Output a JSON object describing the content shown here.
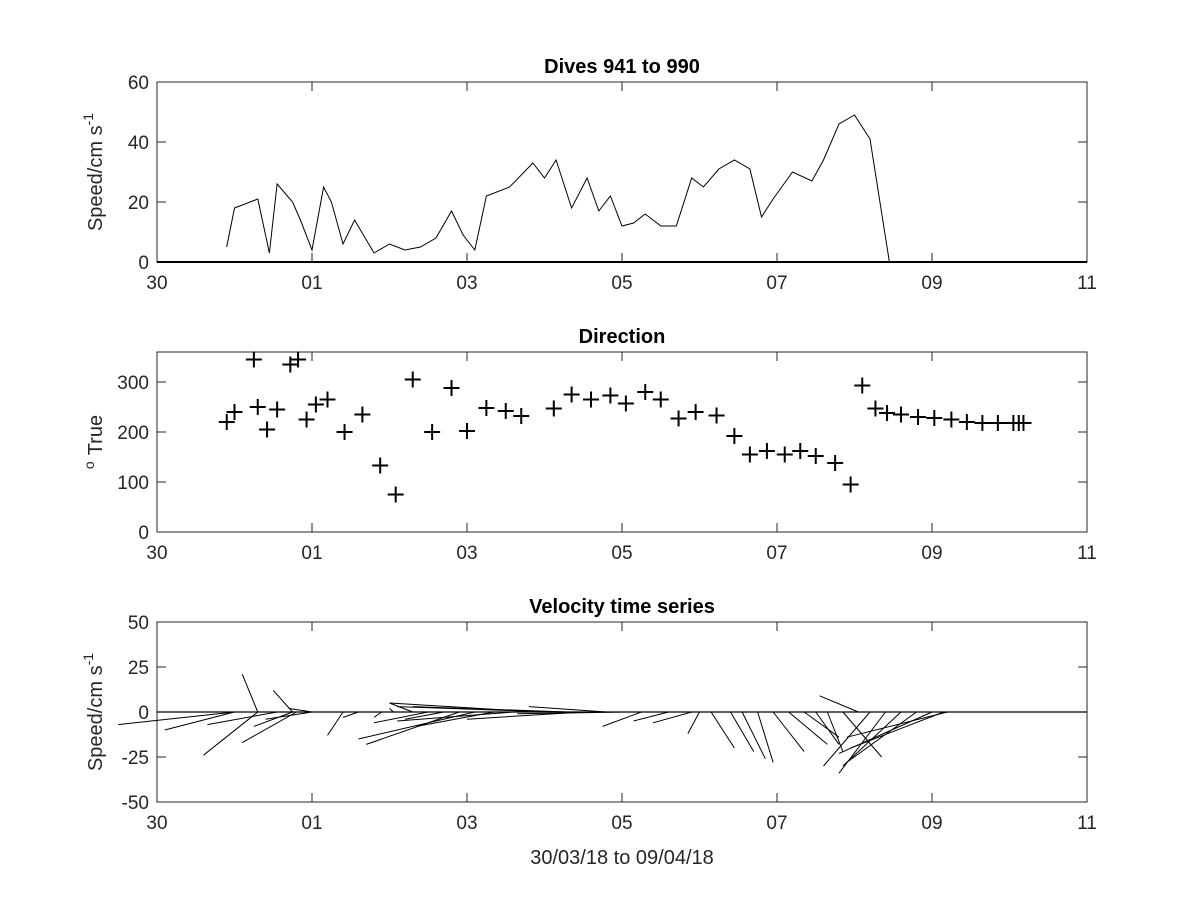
{
  "chart_data": [
    {
      "type": "line",
      "title": "Dives 941 to 990",
      "ylabel": "Speed/cm s",
      "ylabel_superscript": "-1",
      "xlabel": "",
      "xlim": [
        30,
        42
      ],
      "ylim": [
        0,
        60
      ],
      "xticks": [
        30,
        32,
        34,
        36,
        38,
        40,
        42
      ],
      "xtick_labels": [
        "30",
        "01",
        "03",
        "05",
        "07",
        "09",
        "11"
      ],
      "yticks": [
        0,
        20,
        40,
        60
      ],
      "ytick_labels": [
        "0",
        "20",
        "40",
        "60"
      ],
      "grid": false,
      "series": [
        {
          "x": [
            30.9,
            31.0,
            31.3,
            31.45,
            31.55,
            31.75,
            31.85,
            32.0,
            32.15,
            32.25,
            32.4,
            32.55,
            32.8,
            33.0,
            33.2,
            33.4,
            33.6,
            33.8,
            33.95,
            34.1,
            34.25,
            34.55,
            34.85,
            35.0,
            35.15,
            35.35,
            35.55,
            35.7,
            35.85,
            36.0,
            36.15,
            36.3,
            36.5,
            36.7,
            36.9,
            37.05,
            37.25,
            37.45,
            37.65,
            37.8,
            37.95,
            38.2,
            38.45,
            38.6,
            38.8,
            39.0,
            39.2,
            39.45,
            39.65,
            39.85,
            40.05,
            40.15,
            40.2
          ],
          "y": [
            5,
            18,
            21,
            3,
            26,
            20,
            14,
            4,
            25,
            20,
            6,
            14,
            3,
            6,
            4,
            5,
            8,
            17,
            9,
            4,
            22,
            25,
            33,
            28,
            34,
            18,
            28,
            17,
            22,
            12,
            13,
            16,
            12,
            12,
            28,
            25,
            31,
            34,
            31,
            15,
            21,
            30,
            27,
            34,
            46,
            49,
            41,
            0,
            0,
            0,
            0,
            0,
            0
          ],
          "color": "#000000"
        }
      ]
    },
    {
      "type": "scatter",
      "title": "Direction",
      "ylabel": "True",
      "ylabel_superscript": "o",
      "xlabel": "",
      "xlim": [
        30,
        42
      ],
      "ylim": [
        0,
        360
      ],
      "xticks": [
        30,
        32,
        34,
        36,
        38,
        40,
        42
      ],
      "xtick_labels": [
        "30",
        "01",
        "03",
        "05",
        "07",
        "09",
        "11"
      ],
      "yticks": [
        0,
        100,
        200,
        300
      ],
      "ytick_labels": [
        "0",
        "100",
        "200",
        "300"
      ],
      "grid": false,
      "marker": "+",
      "series": [
        {
          "x": [
            30.9,
            31.0,
            31.25,
            31.3,
            31.42,
            31.55,
            31.72,
            31.82,
            31.93,
            32.05,
            32.2,
            32.42,
            32.65,
            32.88,
            33.08,
            33.3,
            33.55,
            33.8,
            34.0,
            34.25,
            34.5,
            34.7,
            35.12,
            35.35,
            35.6,
            35.85,
            36.05,
            36.3,
            36.5,
            36.73,
            36.95,
            37.22,
            37.45,
            37.65,
            37.87,
            38.1,
            38.3,
            38.5,
            38.75,
            38.95,
            39.1,
            39.27,
            39.42,
            39.6,
            39.82,
            40.03,
            40.25,
            40.45,
            40.65,
            40.85,
            41.05,
            41.12,
            41.18
          ],
          "y": [
            220,
            240,
            345,
            250,
            205,
            245,
            335,
            345,
            225,
            255,
            265,
            200,
            235,
            133,
            75,
            305,
            200,
            288,
            202,
            248,
            242,
            232,
            247,
            275,
            265,
            273,
            257,
            280,
            265,
            227,
            240,
            233,
            192,
            155,
            162,
            155,
            162,
            152,
            138,
            95,
            293,
            247,
            238,
            235,
            230,
            228,
            225,
            220,
            218,
            218,
            218,
            218,
            218
          ],
          "color": "#000000"
        }
      ]
    },
    {
      "type": "line",
      "subtype": "stick",
      "title": "Velocity time series",
      "ylabel": "Speed/cm s",
      "ylabel_superscript": "-1",
      "xlabel": "30/03/18 to 09/04/18",
      "xlim": [
        30,
        42
      ],
      "ylim": [
        -50,
        50
      ],
      "xticks": [
        30,
        32,
        34,
        36,
        38,
        40,
        42
      ],
      "xtick_labels": [
        "30",
        "01",
        "03",
        "05",
        "07",
        "09",
        "11"
      ],
      "yticks": [
        -50,
        -25,
        0,
        25,
        50
      ],
      "ytick_labels": [
        "-50",
        "-25",
        "0",
        "25",
        "50"
      ],
      "grid": false,
      "zero_line": true,
      "sticks": [
        {
          "x": 31.0,
          "dx": -1.5,
          "dy": -7
        },
        {
          "x": 31.0,
          "dx": -0.9,
          "dy": -10
        },
        {
          "x": 31.3,
          "dx": -0.7,
          "dy": -24
        },
        {
          "x": 31.3,
          "dx": -0.2,
          "dy": 21
        },
        {
          "x": 31.55,
          "dx": -0.9,
          "dy": -7
        },
        {
          "x": 31.75,
          "dx": -0.5,
          "dy": -8
        },
        {
          "x": 31.8,
          "dx": -0.7,
          "dy": -17
        },
        {
          "x": 31.75,
          "dx": -0.25,
          "dy": 12
        },
        {
          "x": 32.0,
          "dx": -0.6,
          "dy": -4
        },
        {
          "x": 32.0,
          "dx": -0.3,
          "dy": 2
        },
        {
          "x": 32.4,
          "dx": -0.2,
          "dy": -13
        },
        {
          "x": 32.6,
          "dx": -0.2,
          "dy": -3
        },
        {
          "x": 32.9,
          "dx": -0.1,
          "dy": -3
        },
        {
          "x": 33.05,
          "dx": -0.05,
          "dy": 2
        },
        {
          "x": 33.3,
          "dx": -0.3,
          "dy": 5
        },
        {
          "x": 33.5,
          "dx": -0.7,
          "dy": -6
        },
        {
          "x": 33.7,
          "dx": -0.5,
          "dy": -4
        },
        {
          "x": 33.9,
          "dx": -1.2,
          "dy": -18
        },
        {
          "x": 34.1,
          "dx": -1.5,
          "dy": -15
        },
        {
          "x": 34.35,
          "dx": -1.0,
          "dy": -8
        },
        {
          "x": 34.6,
          "dx": -1.5,
          "dy": -5
        },
        {
          "x": 34.9,
          "dx": -1.9,
          "dy": 5
        },
        {
          "x": 35.1,
          "dx": -2.0,
          "dy": 3
        },
        {
          "x": 35.3,
          "dx": -2.0,
          "dy": 3
        },
        {
          "x": 35.5,
          "dx": -1.5,
          "dy": -4
        },
        {
          "x": 35.8,
          "dx": -1.0,
          "dy": 3
        },
        {
          "x": 36.05,
          "dx": -1.4,
          "dy": -1
        },
        {
          "x": 36.25,
          "dx": -0.5,
          "dy": -8
        },
        {
          "x": 36.6,
          "dx": -0.45,
          "dy": -5
        },
        {
          "x": 36.9,
          "dx": -0.5,
          "dy": -6
        },
        {
          "x": 37.0,
          "dx": -0.15,
          "dy": -12
        },
        {
          "x": 37.15,
          "dx": 0.3,
          "dy": -20
        },
        {
          "x": 37.4,
          "dx": 0.3,
          "dy": -22
        },
        {
          "x": 37.55,
          "dx": 0.3,
          "dy": -26
        },
        {
          "x": 37.75,
          "dx": 0.2,
          "dy": -28
        },
        {
          "x": 37.95,
          "dx": 0.4,
          "dy": -22
        },
        {
          "x": 38.15,
          "dx": 0.5,
          "dy": -18
        },
        {
          "x": 38.35,
          "dx": 0.45,
          "dy": -14
        },
        {
          "x": 38.5,
          "dx": 0.3,
          "dy": -18
        },
        {
          "x": 38.65,
          "dx": 0.2,
          "dy": -22
        },
        {
          "x": 38.85,
          "dx": 0.5,
          "dy": -25
        },
        {
          "x": 39.05,
          "dx": -0.5,
          "dy": 9
        },
        {
          "x": 39.2,
          "dx": -0.6,
          "dy": -30
        },
        {
          "x": 39.4,
          "dx": -0.6,
          "dy": -34
        },
        {
          "x": 39.6,
          "dx": -0.75,
          "dy": -30
        },
        {
          "x": 39.8,
          "dx": -0.9,
          "dy": -28
        },
        {
          "x": 40.0,
          "dx": -1.2,
          "dy": -23
        },
        {
          "x": 40.15,
          "dx": -1.2,
          "dy": -20
        },
        {
          "x": 40.2,
          "dx": -1.3,
          "dy": -14
        }
      ]
    }
  ]
}
